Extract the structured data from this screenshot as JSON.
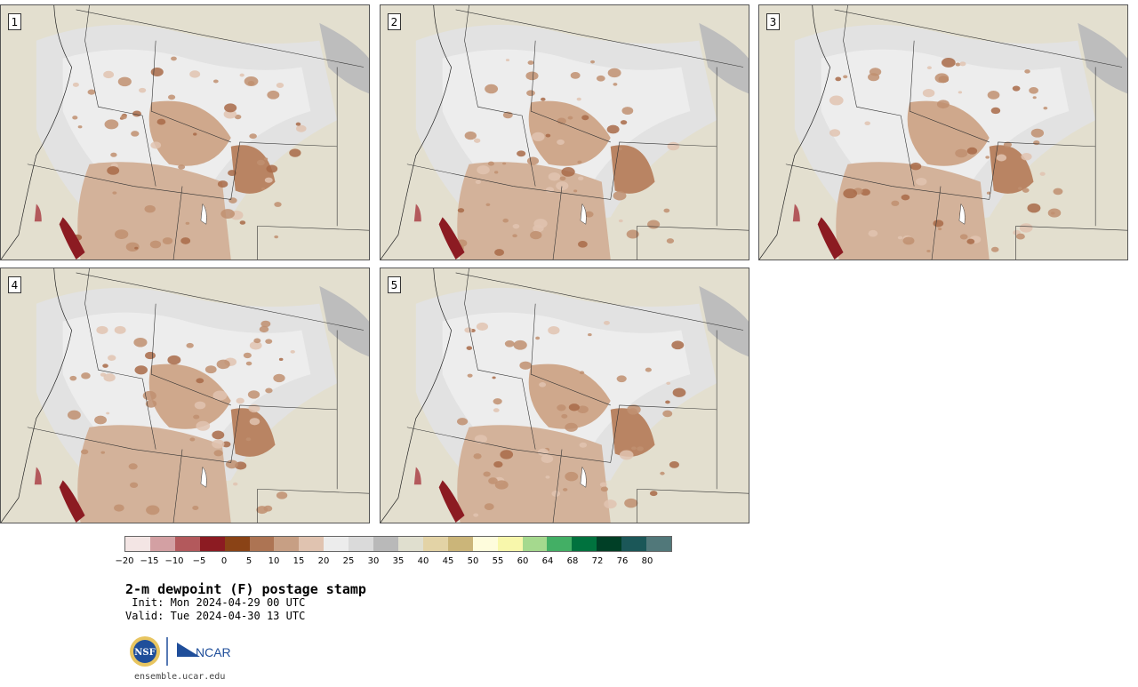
{
  "panels": [
    {
      "label": "1"
    },
    {
      "label": "2"
    },
    {
      "label": "3"
    },
    {
      "label": "4"
    },
    {
      "label": "5"
    }
  ],
  "colorbar": {
    "ticks": [
      "−20",
      "−15",
      "−10",
      "−5",
      "0",
      "5",
      "10",
      "15",
      "20",
      "25",
      "30",
      "35",
      "40",
      "45",
      "50",
      "55",
      "60",
      "64",
      "68",
      "72",
      "76",
      "80"
    ],
    "colors": [
      "#f3e5e4",
      "#d3a0a3",
      "#b3595c",
      "#8c1b22",
      "#8a4316",
      "#ad7453",
      "#c79f84",
      "#e0c3b0",
      "#ececec",
      "#dadada",
      "#b9b9b9",
      "#e0dfcf",
      "#e3d3a6",
      "#cbb579",
      "#fefcdc",
      "#f8f7ab",
      "#a5d98e",
      "#43af65",
      "#00723e",
      "#003f26",
      "#1b5758",
      "#51787a"
    ]
  },
  "title": "2-m dewpoint (F) postage stamp",
  "init": " Init: Mon 2024-04-29 00 UTC",
  "valid": "Valid: Tue 2024-04-30 13 UTC",
  "logos": {
    "nsf": "NSF",
    "ncar": "NCAR"
  },
  "url": "ensemble.ucar.edu"
}
